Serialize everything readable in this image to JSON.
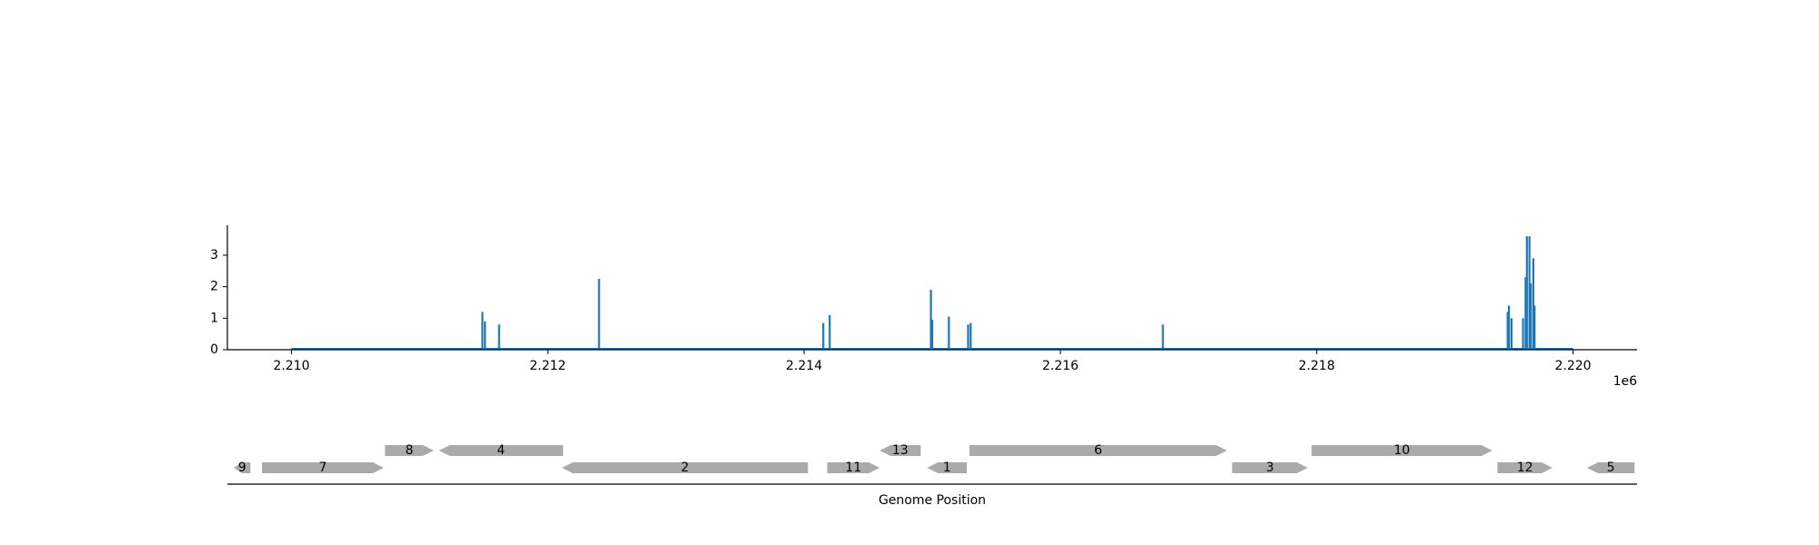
{
  "chart_data": [
    {
      "type": "line",
      "title": "",
      "xlabel": "",
      "ylabel": "",
      "x_offset_label": "1e6",
      "xlim": [
        2209500,
        2220500
      ],
      "ylim": [
        0,
        3.95
      ],
      "x_ticks": [
        2210000,
        2212000,
        2214000,
        2216000,
        2218000,
        2220000
      ],
      "x_tick_labels": [
        "2.210",
        "2.212",
        "2.214",
        "2.216",
        "2.218",
        "2.220"
      ],
      "y_ticks": [
        0,
        1,
        2,
        3
      ],
      "y_tick_labels": [
        "0",
        "1",
        "2",
        "3"
      ],
      "grid": false,
      "color": "#1f77b4",
      "baseline_range": [
        2210000,
        2220000
      ],
      "peaks": [
        {
          "x": 2211490,
          "y": 1.2
        },
        {
          "x": 2211510,
          "y": 0.9
        },
        {
          "x": 2211620,
          "y": 0.8
        },
        {
          "x": 2212400,
          "y": 2.25
        },
        {
          "x": 2214150,
          "y": 0.85
        },
        {
          "x": 2214200,
          "y": 1.1
        },
        {
          "x": 2214990,
          "y": 1.9
        },
        {
          "x": 2215000,
          "y": 0.95
        },
        {
          "x": 2215130,
          "y": 1.05
        },
        {
          "x": 2215280,
          "y": 0.8
        },
        {
          "x": 2215300,
          "y": 0.85
        },
        {
          "x": 2216800,
          "y": 0.8
        },
        {
          "x": 2219490,
          "y": 1.2
        },
        {
          "x": 2219500,
          "y": 1.4
        },
        {
          "x": 2219520,
          "y": 1.0
        },
        {
          "x": 2219610,
          "y": 1.0
        },
        {
          "x": 2219630,
          "y": 2.3
        },
        {
          "x": 2219640,
          "y": 3.6
        },
        {
          "x": 2219660,
          "y": 3.6
        },
        {
          "x": 2219670,
          "y": 2.1
        },
        {
          "x": 2219690,
          "y": 2.9
        },
        {
          "x": 2219700,
          "y": 1.4
        }
      ]
    },
    {
      "type": "gene-map",
      "xlabel": "Genome Position",
      "xlim": [
        2209500,
        2220500
      ],
      "color": "#aaaaaa",
      "genes": [
        {
          "label": "9",
          "start": 2209550,
          "end": 2209680,
          "strand": "-",
          "row": 0
        },
        {
          "label": "7",
          "start": 2209770,
          "end": 2210720,
          "strand": "+",
          "row": 0
        },
        {
          "label": "8",
          "start": 2210730,
          "end": 2211110,
          "strand": "+",
          "row": 1
        },
        {
          "label": "4",
          "start": 2211150,
          "end": 2212120,
          "strand": "-",
          "row": 1
        },
        {
          "label": "2",
          "start": 2212110,
          "end": 2214030,
          "strand": "-",
          "row": 0
        },
        {
          "label": "11",
          "start": 2214180,
          "end": 2214590,
          "strand": "+",
          "row": 0
        },
        {
          "label": "13",
          "start": 2214590,
          "end": 2214910,
          "strand": "-",
          "row": 1
        },
        {
          "label": "1",
          "start": 2214960,
          "end": 2215270,
          "strand": "-",
          "row": 0
        },
        {
          "label": "6",
          "start": 2215290,
          "end": 2217300,
          "strand": "+",
          "row": 1
        },
        {
          "label": "3",
          "start": 2217340,
          "end": 2217930,
          "strand": "+",
          "row": 0
        },
        {
          "label": "10",
          "start": 2217960,
          "end": 2219370,
          "strand": "+",
          "row": 1
        },
        {
          "label": "12",
          "start": 2219410,
          "end": 2219840,
          "strand": "+",
          "row": 0
        },
        {
          "label": "5",
          "start": 2220110,
          "end": 2220480,
          "strand": "-",
          "row": 0
        }
      ]
    }
  ]
}
